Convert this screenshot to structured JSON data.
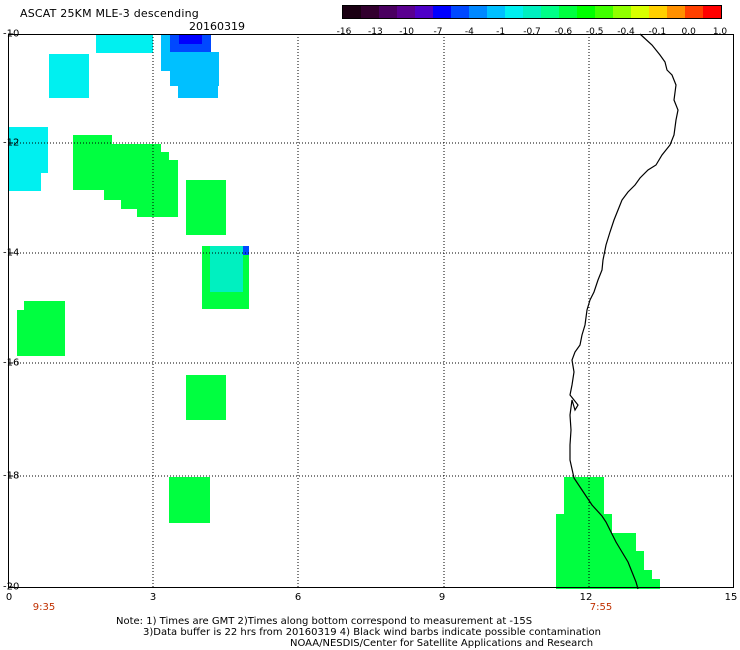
{
  "header": {
    "title": "ASCAT 25KM MLE-3 descending",
    "date": "20160319"
  },
  "colorbar": {
    "colors": [
      "#1a0012",
      "#32002e",
      "#4a0060",
      "#5a0090",
      "#4e00c8",
      "#0000ff",
      "#0048ff",
      "#0088ff",
      "#00c0ff",
      "#00f0f0",
      "#00f0c0",
      "#00ff88",
      "#00ff40",
      "#00ff00",
      "#40ff00",
      "#90ff00",
      "#d8ff00",
      "#ffd000",
      "#ff9000",
      "#ff4000",
      "#ff0000"
    ],
    "tick_labels": [
      "-16",
      "-13",
      "-10",
      "-7",
      "-4",
      "-1",
      "-0.7",
      "-0.6",
      "-0.5",
      "-0.4",
      "-0.1",
      "0.0",
      "1.0"
    ]
  },
  "axes": {
    "y_labels": [
      "-10",
      "-12",
      "-14",
      "-16",
      "-18",
      "-20"
    ],
    "x_labels": [
      "0",
      "3",
      "6",
      "9",
      "12",
      "15"
    ],
    "time_labels": [
      "9:35",
      "7:55"
    ]
  },
  "notes": {
    "line1": "Note: 1) Times are GMT 2)Times along bottom correspond to measurement at -15S",
    "line2": "3)Data buffer is 22 hrs from 20160319 4) Black wind barbs indicate possible contamination",
    "line3": "NOAA/NESDIS/Center for Satellite Applications and Research"
  },
  "colors": {
    "green": "#00ff40",
    "cyan": "#00f0f0",
    "light_blue": "#00c0ff",
    "blue": "#0048ff",
    "dark_blue": "#0000ff",
    "time_label": "#c03000"
  }
}
